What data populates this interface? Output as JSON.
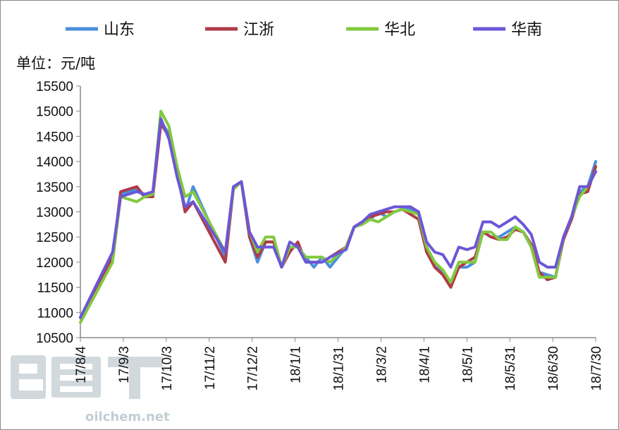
{
  "chart_data": {
    "type": "line",
    "unit_label": "单位：元/吨",
    "ylim": [
      10500,
      15500
    ],
    "y_ticks": [
      "15500",
      "15000",
      "14500",
      "14000",
      "13500",
      "13000",
      "12500",
      "12000",
      "11500",
      "11000",
      "10500"
    ],
    "x_ticks": [
      {
        "label": "17/8/4",
        "index": 0
      },
      {
        "label": "17/9/3",
        "index": 10
      },
      {
        "label": "17/10/3",
        "index": 20
      },
      {
        "label": "17/11/2",
        "index": 30
      },
      {
        "label": "17/12/2",
        "index": 40
      },
      {
        "label": "18/1/1",
        "index": 50
      },
      {
        "label": "18/1/31",
        "index": 60
      },
      {
        "label": "18/3/2",
        "index": 70
      },
      {
        "label": "18/4/1",
        "index": 80
      },
      {
        "label": "18/5/1",
        "index": 90
      },
      {
        "label": "18/5/31",
        "index": 100
      },
      {
        "label": "18/6/30",
        "index": 110
      },
      {
        "label": "18/7/30",
        "index": 120
      }
    ],
    "grid": false,
    "legend": "top",
    "series": [
      {
        "name": "山东",
        "color": "#4a8fdc",
        "points": [
          [
            0,
            10900
          ],
          [
            4,
            12100
          ],
          [
            5,
            13350
          ],
          [
            7,
            13450
          ],
          [
            8,
            13300
          ],
          [
            9,
            13350
          ],
          [
            10,
            14800
          ],
          [
            11,
            14550
          ],
          [
            12,
            13800
          ],
          [
            13,
            13000
          ],
          [
            14,
            13500
          ],
          [
            18,
            12100
          ],
          [
            19,
            13450
          ],
          [
            20,
            13600
          ],
          [
            21,
            12500
          ],
          [
            22,
            12000
          ],
          [
            23,
            12400
          ],
          [
            24,
            12400
          ],
          [
            25,
            11900
          ],
          [
            26,
            12300
          ],
          [
            27,
            12300
          ],
          [
            28,
            12100
          ],
          [
            29,
            11900
          ],
          [
            30,
            12100
          ],
          [
            31,
            11900
          ],
          [
            33,
            12300
          ],
          [
            34,
            12700
          ],
          [
            35,
            12800
          ],
          [
            36,
            12850
          ],
          [
            37,
            13000
          ],
          [
            38,
            12900
          ],
          [
            39,
            13000
          ],
          [
            40,
            13050
          ],
          [
            41,
            13050
          ],
          [
            42,
            12950
          ],
          [
            43,
            12300
          ],
          [
            44,
            12000
          ],
          [
            45,
            11800
          ],
          [
            46,
            11600
          ],
          [
            47,
            11900
          ],
          [
            48,
            11900
          ],
          [
            49,
            12000
          ],
          [
            50,
            12600
          ],
          [
            51,
            12500
          ],
          [
            52,
            12500
          ],
          [
            53,
            12600
          ],
          [
            54,
            12700
          ],
          [
            55,
            12600
          ],
          [
            56,
            12300
          ],
          [
            57,
            11800
          ],
          [
            58,
            11750
          ],
          [
            59,
            11700
          ],
          [
            60,
            12500
          ],
          [
            61,
            12900
          ],
          [
            62,
            13400
          ],
          [
            63,
            13500
          ],
          [
            64,
            14000
          ]
        ]
      },
      {
        "name": "江浙",
        "color": "#b03a48",
        "points": [
          [
            0,
            10900
          ],
          [
            4,
            12100
          ],
          [
            5,
            13400
          ],
          [
            7,
            13500
          ],
          [
            8,
            13300
          ],
          [
            9,
            13300
          ],
          [
            10,
            14750
          ],
          [
            11,
            14500
          ],
          [
            12,
            13900
          ],
          [
            13,
            13000
          ],
          [
            14,
            13200
          ],
          [
            18,
            12000
          ],
          [
            19,
            13450
          ],
          [
            20,
            13600
          ],
          [
            21,
            12500
          ],
          [
            22,
            12100
          ],
          [
            23,
            12400
          ],
          [
            24,
            12400
          ],
          [
            25,
            11900
          ],
          [
            26,
            12200
          ],
          [
            27,
            12400
          ],
          [
            28,
            12000
          ],
          [
            29,
            12000
          ],
          [
            30,
            12000
          ],
          [
            31,
            12100
          ],
          [
            33,
            12300
          ],
          [
            34,
            12700
          ],
          [
            35,
            12800
          ],
          [
            36,
            12900
          ],
          [
            37,
            12950
          ],
          [
            38,
            13000
          ],
          [
            39,
            13000
          ],
          [
            40,
            13050
          ],
          [
            41,
            12950
          ],
          [
            42,
            12850
          ],
          [
            43,
            12200
          ],
          [
            44,
            11900
          ],
          [
            45,
            11750
          ],
          [
            46,
            11500
          ],
          [
            47,
            11900
          ],
          [
            48,
            12000
          ],
          [
            49,
            12100
          ],
          [
            50,
            12600
          ],
          [
            51,
            12500
          ],
          [
            52,
            12450
          ],
          [
            53,
            12500
          ],
          [
            54,
            12650
          ],
          [
            55,
            12600
          ],
          [
            56,
            12350
          ],
          [
            57,
            11800
          ],
          [
            58,
            11650
          ],
          [
            59,
            11700
          ],
          [
            60,
            12450
          ],
          [
            61,
            12850
          ],
          [
            62,
            13350
          ],
          [
            63,
            13400
          ],
          [
            64,
            13900
          ]
        ]
      },
      {
        "name": "华北",
        "color": "#82c93f",
        "points": [
          [
            0,
            10800
          ],
          [
            4,
            12000
          ],
          [
            5,
            13300
          ],
          [
            7,
            13200
          ],
          [
            8,
            13300
          ],
          [
            9,
            13350
          ],
          [
            10,
            15000
          ],
          [
            11,
            14700
          ],
          [
            12,
            13900
          ],
          [
            13,
            13300
          ],
          [
            14,
            13400
          ],
          [
            18,
            12200
          ],
          [
            19,
            13450
          ],
          [
            20,
            13600
          ],
          [
            21,
            12600
          ],
          [
            22,
            12200
          ],
          [
            23,
            12500
          ],
          [
            24,
            12500
          ],
          [
            25,
            11900
          ],
          [
            26,
            12300
          ],
          [
            27,
            12300
          ],
          [
            28,
            12100
          ],
          [
            29,
            12100
          ],
          [
            30,
            12100
          ],
          [
            31,
            12000
          ],
          [
            33,
            12300
          ],
          [
            34,
            12700
          ],
          [
            35,
            12750
          ],
          [
            36,
            12850
          ],
          [
            37,
            12800
          ],
          [
            38,
            12900
          ],
          [
            39,
            13000
          ],
          [
            40,
            13050
          ],
          [
            41,
            13000
          ],
          [
            42,
            12950
          ],
          [
            43,
            12300
          ],
          [
            44,
            12000
          ],
          [
            45,
            11850
          ],
          [
            46,
            11600
          ],
          [
            47,
            12000
          ],
          [
            48,
            12000
          ],
          [
            49,
            12000
          ],
          [
            50,
            12600
          ],
          [
            51,
            12600
          ],
          [
            52,
            12450
          ],
          [
            53,
            12450
          ],
          [
            54,
            12700
          ],
          [
            55,
            12600
          ],
          [
            56,
            12300
          ],
          [
            57,
            11700
          ],
          [
            58,
            11700
          ],
          [
            59,
            11700
          ],
          [
            60,
            12500
          ],
          [
            61,
            12900
          ],
          [
            62,
            13300
          ],
          [
            63,
            13500
          ],
          [
            64,
            13800
          ]
        ]
      },
      {
        "name": "华南",
        "color": "#6b57d6",
        "points": [
          [
            0,
            10900
          ],
          [
            4,
            12200
          ],
          [
            5,
            13300
          ],
          [
            7,
            13400
          ],
          [
            8,
            13350
          ],
          [
            9,
            13400
          ],
          [
            10,
            14850
          ],
          [
            11,
            14450
          ],
          [
            12,
            13700
          ],
          [
            13,
            13100
          ],
          [
            14,
            13200
          ],
          [
            18,
            12200
          ],
          [
            19,
            13500
          ],
          [
            20,
            13600
          ],
          [
            21,
            12600
          ],
          [
            22,
            12300
          ],
          [
            23,
            12300
          ],
          [
            24,
            12300
          ],
          [
            25,
            11900
          ],
          [
            26,
            12400
          ],
          [
            27,
            12300
          ],
          [
            28,
            12000
          ],
          [
            29,
            12000
          ],
          [
            30,
            12000
          ],
          [
            31,
            12100
          ],
          [
            33,
            12250
          ],
          [
            34,
            12700
          ],
          [
            35,
            12800
          ],
          [
            36,
            12950
          ],
          [
            37,
            13000
          ],
          [
            38,
            13050
          ],
          [
            39,
            13100
          ],
          [
            40,
            13100
          ],
          [
            41,
            13100
          ],
          [
            42,
            13000
          ],
          [
            43,
            12400
          ],
          [
            44,
            12200
          ],
          [
            45,
            12150
          ],
          [
            46,
            11900
          ],
          [
            47,
            12300
          ],
          [
            48,
            12250
          ],
          [
            49,
            12300
          ],
          [
            50,
            12800
          ],
          [
            51,
            12800
          ],
          [
            52,
            12700
          ],
          [
            53,
            12800
          ],
          [
            54,
            12900
          ],
          [
            55,
            12750
          ],
          [
            56,
            12550
          ],
          [
            57,
            12000
          ],
          [
            58,
            11900
          ],
          [
            59,
            11900
          ],
          [
            60,
            12500
          ],
          [
            61,
            12900
          ],
          [
            62,
            13500
          ],
          [
            63,
            13500
          ],
          [
            64,
            13800
          ]
        ]
      }
    ]
  },
  "watermark": {
    "text": "oilchem.net"
  }
}
